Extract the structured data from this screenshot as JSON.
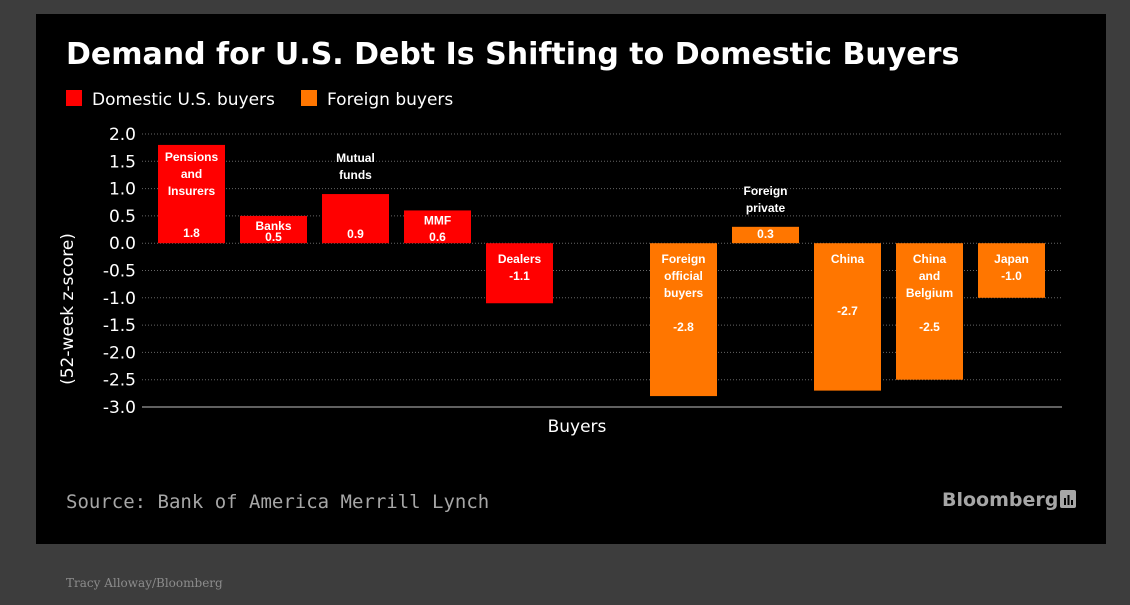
{
  "credit": "Tracy Alloway/Bloomberg",
  "source": "Source: Bank of America Merrill Lynch",
  "brand": "Bloomberg",
  "brand_icon": "bloomberg-terminal-icon",
  "chart_data": {
    "type": "bar",
    "title": "Demand for U.S. Debt Is Shifting to Domestic Buyers",
    "xlabel": "Buyers",
    "ylabel": "(52-week z-score)",
    "ylim": [
      -3.0,
      2.0
    ],
    "yticks": [
      "2.0",
      "1.5",
      "1.0",
      "0.5",
      "0.0",
      "-0.5",
      "-1.0",
      "-1.5",
      "-2.0",
      "-2.5",
      "-3.0"
    ],
    "grid": true,
    "legend_position": "top-left",
    "colors": {
      "domestic": "#ff0000",
      "foreign": "#ff7600"
    },
    "series": [
      {
        "name": "Domestic U.S. buyers",
        "color": "#ff0000"
      },
      {
        "name": "Foreign buyers",
        "color": "#ff7600"
      }
    ],
    "categories": [
      {
        "label": [
          "Pensions",
          "and",
          "Insurers"
        ],
        "value": 1.8,
        "value_label": "1.8",
        "group": "domestic"
      },
      {
        "label": [
          "Banks"
        ],
        "value": 0.5,
        "value_label": "0.5",
        "group": "domestic"
      },
      {
        "label": [
          "Mutual",
          "funds"
        ],
        "value": 0.9,
        "value_label": "0.9",
        "group": "domestic"
      },
      {
        "label": [
          "MMF"
        ],
        "value": 0.6,
        "value_label": "0.6",
        "group": "domestic"
      },
      {
        "label": [
          "Dealers"
        ],
        "value": -1.1,
        "value_label": "-1.1",
        "group": "domestic"
      },
      {
        "label": [],
        "value": null,
        "value_label": "",
        "group": "gap"
      },
      {
        "label": [
          "Foreign",
          "official",
          "buyers"
        ],
        "value": -2.8,
        "value_label": "-2.8",
        "group": "foreign"
      },
      {
        "label": [
          "Foreign",
          "private"
        ],
        "value": 0.3,
        "value_label": "0.3",
        "group": "foreign"
      },
      {
        "label": [
          "China"
        ],
        "value": -2.7,
        "value_label": "-2.7",
        "group": "foreign"
      },
      {
        "label": [
          "China",
          "and",
          "Belgium"
        ],
        "value": -2.5,
        "value_label": "-2.5",
        "group": "foreign"
      },
      {
        "label": [
          "Japan"
        ],
        "value": -1.0,
        "value_label": "-1.0",
        "group": "foreign"
      }
    ]
  }
}
